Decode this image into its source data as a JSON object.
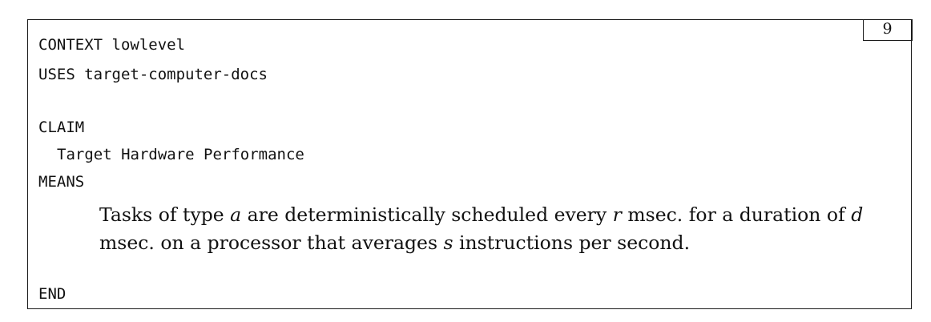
{
  "box": {
    "number": "9"
  },
  "header": {
    "context_keyword": "CONTEXT",
    "context_value": "lowlevel",
    "uses_keyword": "USES",
    "uses_value": "target-computer-docs"
  },
  "claim": {
    "keyword": "CLAIM",
    "name": "Target Hardware Performance"
  },
  "means": {
    "keyword": "MEANS",
    "segments": [
      {
        "text": "Tasks of type ",
        "var": false
      },
      {
        "text": "a",
        "var": true
      },
      {
        "text": " are deterministically scheduled every ",
        "var": false
      },
      {
        "text": "r",
        "var": true
      },
      {
        "text": " msec. for a duration of ",
        "var": false
      },
      {
        "text": "d",
        "var": true
      },
      {
        "text": " msec. on a processor that averages ",
        "var": false
      },
      {
        "text": "s",
        "var": true
      },
      {
        "text": " instructions per second.",
        "var": false
      }
    ]
  },
  "footer": {
    "end_keyword": "END"
  }
}
